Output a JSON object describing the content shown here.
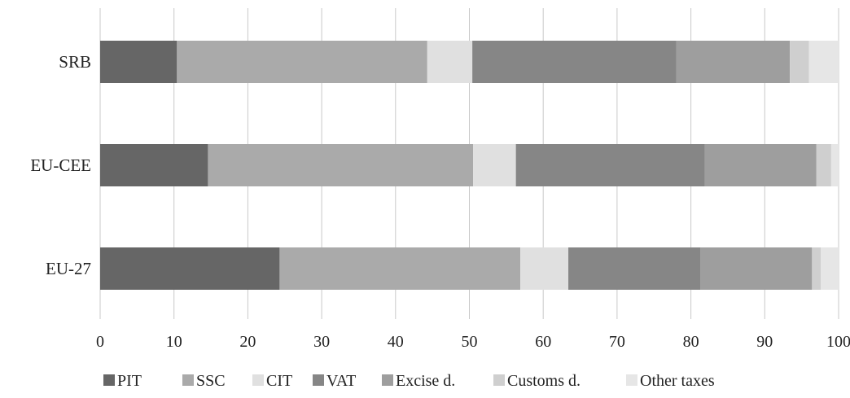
{
  "chart_data": {
    "type": "bar",
    "orientation": "horizontal",
    "stacked": true,
    "categories": [
      "SRB",
      "EU-CEE",
      "EU-27"
    ],
    "xlim": [
      0,
      100
    ],
    "xticks": [
      0,
      10,
      20,
      30,
      40,
      50,
      60,
      70,
      80,
      90,
      100
    ],
    "grid": true,
    "legend_position": "bottom",
    "series": [
      {
        "name": "PIT",
        "color": "#666666",
        "values": [
          10.4,
          14.6,
          24.3
        ]
      },
      {
        "name": "SSC",
        "color": "#aaaaaa",
        "values": [
          33.9,
          35.9,
          32.6
        ]
      },
      {
        "name": "CIT",
        "color": "#e0e0e0",
        "values": [
          6.1,
          5.8,
          6.5
        ]
      },
      {
        "name": "VAT",
        "color": "#868686",
        "values": [
          27.6,
          25.6,
          17.9
        ]
      },
      {
        "name": "Excise d.",
        "color": "#9e9e9e",
        "values": [
          15.4,
          15.1,
          15.1
        ]
      },
      {
        "name": "Customs d.",
        "color": "#cfcfcf",
        "values": [
          2.6,
          2.0,
          1.2
        ]
      },
      {
        "name": "Other taxes",
        "color": "#e6e6e6",
        "values": [
          4.0,
          1.0,
          2.4
        ]
      }
    ]
  }
}
